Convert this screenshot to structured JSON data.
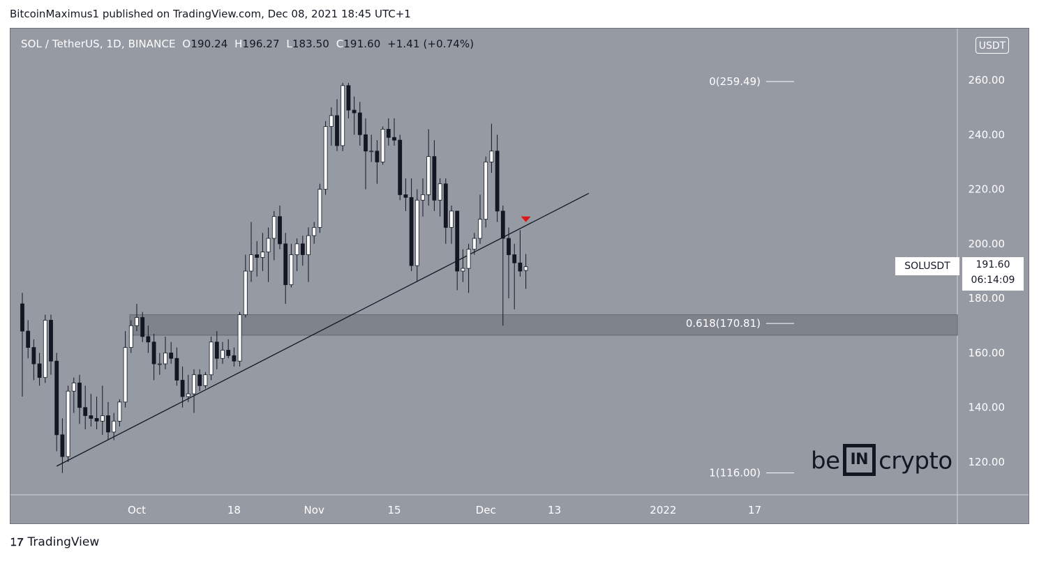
{
  "header": {
    "publish_line": "BitcoinMaximus1 published on TradingView.com, Dec 08, 2021 18:45 UTC+1"
  },
  "legend": {
    "pair": "SOL / TetherUS, 1D, BINANCE",
    "o_label": "O",
    "o_value": "190.24",
    "h_label": "H",
    "h_value": "196.27",
    "l_label": "L",
    "l_value": "183.50",
    "c_label": "C",
    "c_value": "191.60",
    "change": "+1.41 (+0.74%)"
  },
  "unit_badge": "USDT",
  "price_tag": {
    "symbol": "SOLUSDT",
    "price": "191.60",
    "countdown": "06:14:09"
  },
  "watermark": {
    "left": "be",
    "mid": "IN",
    "right": "crypto"
  },
  "footer": {
    "brand": "TradingView",
    "logo": "tradingview-logo-icon"
  },
  "colors": {
    "background": "#959aa3",
    "bull_candle": "#ffffff",
    "bear_candle": "#131722",
    "support_zone": "#7d8189",
    "marker": "#e01616"
  },
  "chart_data": {
    "type": "candlestick",
    "y_ticks": [
      "260.00",
      "240.00",
      "220.00",
      "200.00",
      "180.00",
      "160.00",
      "140.00",
      "120.00"
    ],
    "ylim": [
      110,
      270
    ],
    "x_ticks": [
      {
        "label": "Oct",
        "date": "2021-10-01"
      },
      {
        "label": "18",
        "date": "2021-10-18"
      },
      {
        "label": "Nov",
        "date": "2021-11-01"
      },
      {
        "label": "15",
        "date": "2021-11-15"
      },
      {
        "label": "Dec",
        "date": "2021-12-01"
      },
      {
        "label": "13",
        "date": "2021-12-13"
      },
      {
        "label": "2022",
        "date": "2022-01-01"
      },
      {
        "label": "17",
        "date": "2022-01-17"
      }
    ],
    "candles": [
      {
        "date": "2021-09-11",
        "o": 178,
        "h": 182,
        "l": 144,
        "c": 168
      },
      {
        "date": "2021-09-12",
        "o": 168,
        "h": 172,
        "l": 158,
        "c": 162
      },
      {
        "date": "2021-09-13",
        "o": 162,
        "h": 165,
        "l": 150,
        "c": 156
      },
      {
        "date": "2021-09-14",
        "o": 156,
        "h": 160,
        "l": 148,
        "c": 151
      },
      {
        "date": "2021-09-15",
        "o": 151,
        "h": 174,
        "l": 149,
        "c": 172
      },
      {
        "date": "2021-09-16",
        "o": 172,
        "h": 174,
        "l": 152,
        "c": 157
      },
      {
        "date": "2021-09-17",
        "o": 157,
        "h": 160,
        "l": 124,
        "c": 130
      },
      {
        "date": "2021-09-18",
        "o": 130,
        "h": 136,
        "l": 116,
        "c": 122
      },
      {
        "date": "2021-09-19",
        "o": 122,
        "h": 148,
        "l": 120,
        "c": 146
      },
      {
        "date": "2021-09-20",
        "o": 146,
        "h": 151,
        "l": 138,
        "c": 149
      },
      {
        "date": "2021-09-21",
        "o": 149,
        "h": 152,
        "l": 134,
        "c": 140
      },
      {
        "date": "2021-09-22",
        "o": 140,
        "h": 148,
        "l": 132,
        "c": 137
      },
      {
        "date": "2021-09-23",
        "o": 137,
        "h": 145,
        "l": 133,
        "c": 136
      },
      {
        "date": "2021-09-24",
        "o": 136,
        "h": 144,
        "l": 132,
        "c": 135
      },
      {
        "date": "2021-09-25",
        "o": 135,
        "h": 148,
        "l": 130,
        "c": 137
      },
      {
        "date": "2021-09-26",
        "o": 137,
        "h": 142,
        "l": 128,
        "c": 131
      },
      {
        "date": "2021-09-27",
        "o": 131,
        "h": 138,
        "l": 128,
        "c": 135
      },
      {
        "date": "2021-09-28",
        "o": 135,
        "h": 143,
        "l": 133,
        "c": 142
      },
      {
        "date": "2021-09-29",
        "o": 142,
        "h": 168,
        "l": 140,
        "c": 162
      },
      {
        "date": "2021-09-30",
        "o": 162,
        "h": 172,
        "l": 160,
        "c": 170
      },
      {
        "date": "2021-10-01",
        "o": 170,
        "h": 178,
        "l": 168,
        "c": 173
      },
      {
        "date": "2021-10-02",
        "o": 173,
        "h": 175,
        "l": 164,
        "c": 166
      },
      {
        "date": "2021-10-03",
        "o": 166,
        "h": 170,
        "l": 160,
        "c": 164
      },
      {
        "date": "2021-10-04",
        "o": 164,
        "h": 167,
        "l": 150,
        "c": 156
      },
      {
        "date": "2021-10-05",
        "o": 156,
        "h": 160,
        "l": 152,
        "c": 156
      },
      {
        "date": "2021-10-06",
        "o": 156,
        "h": 166,
        "l": 154,
        "c": 160
      },
      {
        "date": "2021-10-07",
        "o": 160,
        "h": 164,
        "l": 156,
        "c": 158
      },
      {
        "date": "2021-10-08",
        "o": 158,
        "h": 162,
        "l": 148,
        "c": 150
      },
      {
        "date": "2021-10-09",
        "o": 150,
        "h": 155,
        "l": 140,
        "c": 144
      },
      {
        "date": "2021-10-10",
        "o": 144,
        "h": 152,
        "l": 142,
        "c": 145
      },
      {
        "date": "2021-10-11",
        "o": 145,
        "h": 154,
        "l": 138,
        "c": 152
      },
      {
        "date": "2021-10-12",
        "o": 152,
        "h": 154,
        "l": 146,
        "c": 148
      },
      {
        "date": "2021-10-13",
        "o": 148,
        "h": 153,
        "l": 147,
        "c": 152
      },
      {
        "date": "2021-10-14",
        "o": 152,
        "h": 166,
        "l": 150,
        "c": 164
      },
      {
        "date": "2021-10-15",
        "o": 164,
        "h": 168,
        "l": 154,
        "c": 158
      },
      {
        "date": "2021-10-16",
        "o": 158,
        "h": 164,
        "l": 156,
        "c": 161
      },
      {
        "date": "2021-10-17",
        "o": 161,
        "h": 165,
        "l": 158,
        "c": 159
      },
      {
        "date": "2021-10-18",
        "o": 159,
        "h": 162,
        "l": 155,
        "c": 157
      },
      {
        "date": "2021-10-19",
        "o": 157,
        "h": 175,
        "l": 155,
        "c": 174
      },
      {
        "date": "2021-10-20",
        "o": 174,
        "h": 196,
        "l": 173,
        "c": 190
      },
      {
        "date": "2021-10-21",
        "o": 190,
        "h": 208,
        "l": 186,
        "c": 196
      },
      {
        "date": "2021-10-22",
        "o": 196,
        "h": 201,
        "l": 188,
        "c": 195
      },
      {
        "date": "2021-10-23",
        "o": 195,
        "h": 204,
        "l": 190,
        "c": 197
      },
      {
        "date": "2021-10-24",
        "o": 197,
        "h": 206,
        "l": 186,
        "c": 202
      },
      {
        "date": "2021-10-25",
        "o": 202,
        "h": 212,
        "l": 194,
        "c": 210
      },
      {
        "date": "2021-10-26",
        "o": 210,
        "h": 214,
        "l": 198,
        "c": 200
      },
      {
        "date": "2021-10-27",
        "o": 200,
        "h": 204,
        "l": 178,
        "c": 185
      },
      {
        "date": "2021-10-28",
        "o": 185,
        "h": 200,
        "l": 184,
        "c": 196
      },
      {
        "date": "2021-10-29",
        "o": 196,
        "h": 202,
        "l": 190,
        "c": 200
      },
      {
        "date": "2021-10-30",
        "o": 200,
        "h": 203,
        "l": 192,
        "c": 196
      },
      {
        "date": "2021-10-31",
        "o": 196,
        "h": 206,
        "l": 186,
        "c": 203
      },
      {
        "date": "2021-11-01",
        "o": 203,
        "h": 208,
        "l": 200,
        "c": 206
      },
      {
        "date": "2021-11-02",
        "o": 206,
        "h": 222,
        "l": 204,
        "c": 220
      },
      {
        "date": "2021-11-03",
        "o": 220,
        "h": 245,
        "l": 218,
        "c": 243
      },
      {
        "date": "2021-11-04",
        "o": 243,
        "h": 250,
        "l": 236,
        "c": 247
      },
      {
        "date": "2021-11-05",
        "o": 247,
        "h": 253,
        "l": 234,
        "c": 236
      },
      {
        "date": "2021-11-06",
        "o": 236,
        "h": 259,
        "l": 234,
        "c": 258
      },
      {
        "date": "2021-11-07",
        "o": 258,
        "h": 259,
        "l": 246,
        "c": 249
      },
      {
        "date": "2021-11-08",
        "o": 249,
        "h": 254,
        "l": 240,
        "c": 248
      },
      {
        "date": "2021-11-09",
        "o": 248,
        "h": 252,
        "l": 236,
        "c": 240
      },
      {
        "date": "2021-11-10",
        "o": 240,
        "h": 246,
        "l": 220,
        "c": 234
      },
      {
        "date": "2021-11-11",
        "o": 234,
        "h": 240,
        "l": 230,
        "c": 234
      },
      {
        "date": "2021-11-12",
        "o": 234,
        "h": 238,
        "l": 222,
        "c": 230
      },
      {
        "date": "2021-11-13",
        "o": 230,
        "h": 243,
        "l": 229,
        "c": 242
      },
      {
        "date": "2021-11-14",
        "o": 242,
        "h": 246,
        "l": 236,
        "c": 239
      },
      {
        "date": "2021-11-15",
        "o": 239,
        "h": 246,
        "l": 236,
        "c": 238
      },
      {
        "date": "2021-11-16",
        "o": 238,
        "h": 240,
        "l": 216,
        "c": 218
      },
      {
        "date": "2021-11-17",
        "o": 218,
        "h": 224,
        "l": 212,
        "c": 217
      },
      {
        "date": "2021-11-18",
        "o": 217,
        "h": 224,
        "l": 190,
        "c": 192
      },
      {
        "date": "2021-11-19",
        "o": 192,
        "h": 220,
        "l": 186,
        "c": 216
      },
      {
        "date": "2021-11-20",
        "o": 216,
        "h": 224,
        "l": 210,
        "c": 218
      },
      {
        "date": "2021-11-21",
        "o": 218,
        "h": 242,
        "l": 214,
        "c": 232
      },
      {
        "date": "2021-11-22",
        "o": 232,
        "h": 238,
        "l": 212,
        "c": 216
      },
      {
        "date": "2021-11-23",
        "o": 216,
        "h": 224,
        "l": 210,
        "c": 222
      },
      {
        "date": "2021-11-24",
        "o": 222,
        "h": 224,
        "l": 200,
        "c": 206
      },
      {
        "date": "2021-11-25",
        "o": 206,
        "h": 214,
        "l": 200,
        "c": 212
      },
      {
        "date": "2021-11-26",
        "o": 212,
        "h": 212,
        "l": 183,
        "c": 190
      },
      {
        "date": "2021-11-27",
        "o": 190,
        "h": 198,
        "l": 186,
        "c": 191
      },
      {
        "date": "2021-11-28",
        "o": 191,
        "h": 200,
        "l": 182,
        "c": 198
      },
      {
        "date": "2021-11-29",
        "o": 198,
        "h": 204,
        "l": 196,
        "c": 202
      },
      {
        "date": "2021-11-30",
        "o": 202,
        "h": 218,
        "l": 200,
        "c": 209
      },
      {
        "date": "2021-12-01",
        "o": 209,
        "h": 232,
        "l": 206,
        "c": 230
      },
      {
        "date": "2021-12-02",
        "o": 230,
        "h": 244,
        "l": 226,
        "c": 234
      },
      {
        "date": "2021-12-03",
        "o": 234,
        "h": 240,
        "l": 208,
        "c": 212
      },
      {
        "date": "2021-12-04",
        "o": 212,
        "h": 214,
        "l": 170,
        "c": 202
      },
      {
        "date": "2021-12-05",
        "o": 202,
        "h": 206,
        "l": 180,
        "c": 196
      },
      {
        "date": "2021-12-06",
        "o": 196,
        "h": 200,
        "l": 176,
        "c": 193
      },
      {
        "date": "2021-12-07",
        "o": 193,
        "h": 205,
        "l": 188,
        "c": 190
      },
      {
        "date": "2021-12-08",
        "o": 190.24,
        "h": 196.27,
        "l": 183.5,
        "c": 191.6
      }
    ],
    "trendline": [
      {
        "date": "2021-09-17",
        "price": 118.5
      },
      {
        "date": "2021-12-19",
        "price": 218.5
      }
    ],
    "support_zone": [
      166.5,
      174
    ],
    "fib_levels": [
      {
        "label": "0(259.49)",
        "price": 259.49
      },
      {
        "label": "0.618(170.81)",
        "price": 170.81
      },
      {
        "label": "1(116.00)",
        "price": 116.0
      }
    ],
    "marker": {
      "date": "2021-12-08",
      "price": 209,
      "shape": "triangle-down"
    }
  }
}
